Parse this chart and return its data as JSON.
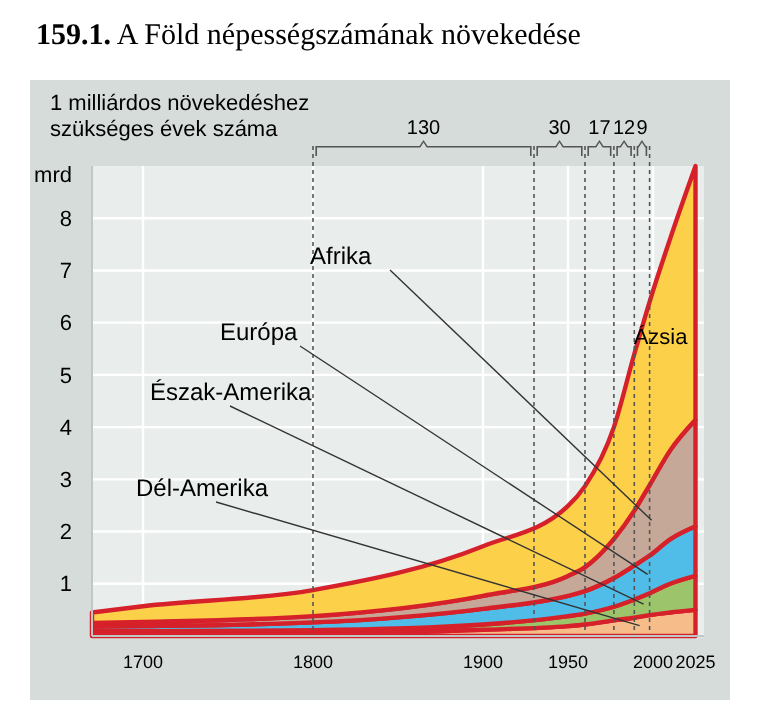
{
  "chart_data": {
    "type": "area",
    "stacked": true,
    "title": "159.1. A Föld népességszámának növekedése",
    "ylabel": "mrd",
    "annotations": [
      "1 milliárdos növekedéshez\nszükséges évek száma",
      "130",
      "30",
      "17",
      "12",
      "9"
    ],
    "x": [
      1670,
      1700,
      1800,
      1900,
      1950,
      1960,
      1977,
      1989,
      1998,
      2010,
      2025
    ],
    "series": [
      {
        "name": "Dél-Amerika",
        "color": "#f6bd8a",
        "values": [
          0.05,
          0.05,
          0.06,
          0.12,
          0.19,
          0.22,
          0.3,
          0.35,
          0.4,
          0.45,
          0.5
        ]
      },
      {
        "name": "Észak-Amerika",
        "color": "#9cc46a",
        "values": [
          0.04,
          0.04,
          0.05,
          0.1,
          0.19,
          0.21,
          0.26,
          0.35,
          0.42,
          0.55,
          0.65
        ]
      },
      {
        "name": "Európa",
        "color": "#4fbde8",
        "values": [
          0.09,
          0.1,
          0.15,
          0.3,
          0.39,
          0.43,
          0.55,
          0.65,
          0.72,
          0.85,
          0.95
        ]
      },
      {
        "name": "Afrika",
        "color": "#c5a898",
        "values": [
          0.07,
          0.08,
          0.12,
          0.25,
          0.38,
          0.46,
          0.75,
          1.05,
          1.35,
          1.7,
          2.04
        ]
      },
      {
        "name": "Ázsia",
        "color": "#fdd04a",
        "values": [
          0.2,
          0.3,
          0.5,
          0.95,
          1.34,
          1.55,
          2.14,
          3.0,
          3.51,
          4.05,
          4.86
        ]
      }
    ],
    "xlim": [
      1670,
      2030
    ],
    "xticks": [
      1700,
      1800,
      1900,
      1950,
      2000,
      2025
    ],
    "ylim": [
      0,
      9
    ],
    "yticks": [
      {
        "value": 0,
        "label": null
      },
      1,
      2,
      3,
      4,
      5,
      6,
      7,
      8
    ],
    "grid": true,
    "ref_lines": [
      {
        "axis": "x",
        "value": 1800,
        "line_style": "dashed"
      },
      {
        "axis": "x",
        "value": 1930,
        "line_style": "dashed"
      },
      {
        "axis": "x",
        "value": 1960,
        "line_style": "dashed"
      },
      {
        "axis": "x",
        "value": 1977,
        "line_style": "dashed"
      },
      {
        "axis": "x",
        "value": 1989,
        "line_style": "dashed"
      },
      {
        "axis": "x",
        "value": 1998,
        "line_style": "dashed"
      }
    ]
  }
}
